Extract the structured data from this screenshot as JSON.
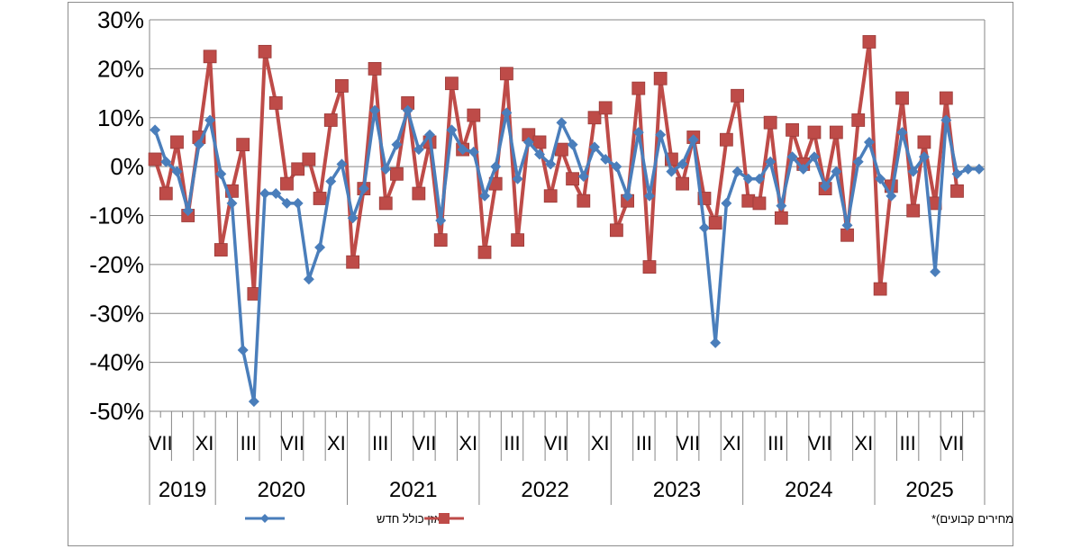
{
  "chart_data": {
    "type": "line",
    "ylim": [
      -50,
      30
    ],
    "yticks": [
      "30%",
      "20%",
      "10%",
      "0%",
      "-10%",
      "-20%",
      "-30%",
      "-40%",
      "-50%"
    ],
    "grid": true,
    "legend_position": "bottom",
    "month_labels": [
      {
        "label": "VII",
        "index": 0
      },
      {
        "label": "XI",
        "index": 4
      },
      {
        "label": "III",
        "index": 8
      },
      {
        "label": "VII",
        "index": 12
      },
      {
        "label": "XI",
        "index": 16
      },
      {
        "label": "III",
        "index": 20
      },
      {
        "label": "VII",
        "index": 24
      },
      {
        "label": "XI",
        "index": 28
      },
      {
        "label": "III",
        "index": 32
      },
      {
        "label": "VII",
        "index": 36
      },
      {
        "label": "XI",
        "index": 40
      },
      {
        "label": "III",
        "index": 44
      },
      {
        "label": "VII",
        "index": 48
      },
      {
        "label": "XI",
        "index": 52
      },
      {
        "label": "III",
        "index": 56
      },
      {
        "label": "VII",
        "index": 60
      },
      {
        "label": "XI",
        "index": 64
      },
      {
        "label": "III",
        "index": 68
      },
      {
        "label": "VII",
        "index": 72
      }
    ],
    "years": [
      {
        "label": "2019",
        "start": 0,
        "end": 5
      },
      {
        "label": "2020",
        "start": 6,
        "end": 17
      },
      {
        "label": "2021",
        "start": 18,
        "end": 29
      },
      {
        "label": "2022",
        "start": 30,
        "end": 41
      },
      {
        "label": "2023",
        "start": 42,
        "end": 53
      },
      {
        "label": "2024",
        "start": 54,
        "end": 65
      },
      {
        "label": "2025",
        "start": 66,
        "end": 75
      }
    ],
    "series": [
      {
        "name": "מאזן כולל חדש",
        "color": "#4a7ebb",
        "marker": "diamond",
        "values": [
          7.5,
          1,
          -1,
          -9,
          4.5,
          9.5,
          -1.5,
          -7.5,
          -37.5,
          -48,
          -5.5,
          -5.5,
          -7.5,
          -7.5,
          -23,
          -16.5,
          -3,
          0.5,
          -10.5,
          -4.5,
          11.5,
          -0.5,
          4.5,
          11.5,
          3.5,
          6.5,
          -11,
          7.5,
          3.5,
          3,
          -6,
          0,
          11,
          -2.5,
          5,
          2.5,
          0.5,
          9,
          4.5,
          -2,
          4,
          1.5,
          0,
          -6,
          7,
          -6,
          6.5,
          -1,
          0.5,
          5.5,
          -12.5,
          -36,
          -7.5,
          -1,
          -2.5,
          -2.5,
          1,
          -8,
          2,
          -0.5,
          2,
          -4,
          -1,
          -12,
          1,
          5,
          -2.5,
          -6,
          7,
          -1,
          2,
          -21.5,
          9.5,
          -1.5,
          -0.5,
          -0.5
        ]
      },
      {
        "name": "השינוי במדד הפדיון לכלל ענפי המשק (נתונים מקוריים במחירים קבועים)*",
        "color": "#be4b48",
        "marker": "square",
        "values": [
          1.5,
          -5.5,
          5,
          -10,
          6,
          22.5,
          -17,
          -5,
          4.5,
          -26,
          23.5,
          13,
          -3.5,
          -0.5,
          1.5,
          -6.5,
          9.5,
          16.5,
          -19.5,
          -4.5,
          20,
          -7.5,
          -1.5,
          13,
          -5.5,
          5,
          -15,
          17,
          3.5,
          10.5,
          -17.5,
          -3.5,
          19,
          -15,
          6.5,
          5,
          -6,
          3.5,
          -2.5,
          -7,
          10,
          12,
          -13,
          -7,
          16,
          -20.5,
          18,
          1.5,
          -3.5,
          6,
          -6.5,
          -11.5,
          5.5,
          14.5,
          -7,
          -7.5,
          9,
          -10.5,
          7.5,
          0.5,
          7,
          -4.5,
          7,
          -14,
          9.5,
          25.5,
          -25,
          -4,
          14,
          -9,
          5,
          -7.5,
          14,
          -5
        ]
      }
    ]
  }
}
